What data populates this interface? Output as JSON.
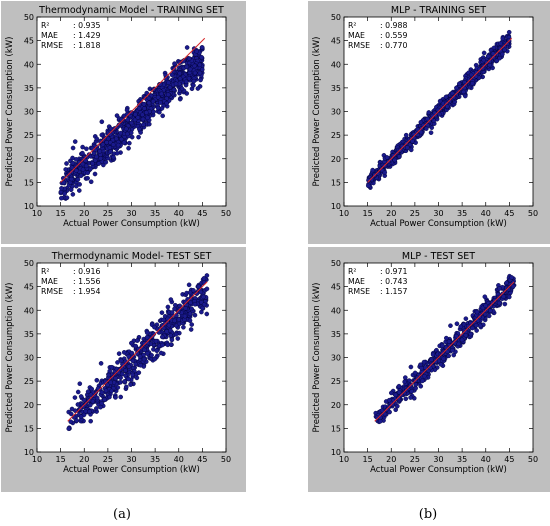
{
  "colors": {
    "panel_bg": "#bfbfbf",
    "plot_bg": "#ffffff",
    "point": "#1a1a8c",
    "point_edge": "#000033",
    "fit_line": "#d62728"
  },
  "captions": {
    "left": "(a)",
    "right": "(b)"
  },
  "chart_data": [
    {
      "type": "scatter",
      "title": "Thermodynamic Model - TRAINING SET",
      "xlabel": "Actual Power Consumption (kW)",
      "ylabel": "Predicted Power Consumption (kW)",
      "xlim": [
        10,
        50
      ],
      "ylim": [
        10,
        50
      ],
      "xticks": [
        10,
        15,
        20,
        25,
        30,
        35,
        40,
        45,
        50
      ],
      "yticks": [
        10,
        15,
        20,
        25,
        30,
        35,
        40,
        45,
        50
      ],
      "grid": false,
      "line": {
        "x": [
          15,
          45.5
        ],
        "y": [
          15,
          45.5
        ]
      },
      "stats": [
        {
          "label": "R²",
          "value": "0.935"
        },
        {
          "label": "MAE",
          "value": "1.429"
        },
        {
          "label": "RMSE",
          "value": "1.818"
        }
      ],
      "points": {
        "x_range": [
          15,
          45
        ],
        "offset": 0.6,
        "slope": 0.9,
        "spread": 1.9,
        "n": 900,
        "seed": 11
      }
    },
    {
      "type": "scatter",
      "title": "MLP - TRAINING SET",
      "xlabel": "Actual Power Consumption (kW)",
      "ylabel": "Predicted Power Consumption (kW)",
      "xlim": [
        10,
        50
      ],
      "ylim": [
        10,
        50
      ],
      "xticks": [
        10,
        15,
        20,
        25,
        30,
        35,
        40,
        45,
        50
      ],
      "yticks": [
        10,
        15,
        20,
        25,
        30,
        35,
        40,
        45,
        50
      ],
      "grid": false,
      "line": {
        "x": [
          15,
          45.5
        ],
        "y": [
          15,
          45.5
        ]
      },
      "stats": [
        {
          "label": "R²",
          "value": "0.988"
        },
        {
          "label": "MAE",
          "value": "0.559"
        },
        {
          "label": "RMSE",
          "value": "0.770"
        }
      ],
      "points": {
        "x_range": [
          15,
          45
        ],
        "offset": 0,
        "slope": 1.0,
        "spread": 0.8,
        "n": 900,
        "seed": 23
      }
    },
    {
      "type": "scatter",
      "title": "Thermodynamic Model- TEST SET",
      "xlabel": "Actual Power Consumption (kW)",
      "ylabel": "Predicted Power Consumption (kW)",
      "xlim": [
        10,
        50
      ],
      "ylim": [
        10,
        50
      ],
      "xticks": [
        10,
        15,
        20,
        25,
        30,
        35,
        40,
        45,
        50
      ],
      "yticks": [
        10,
        15,
        20,
        25,
        30,
        35,
        40,
        45,
        50
      ],
      "grid": false,
      "line": {
        "x": [
          16.5,
          46
        ],
        "y": [
          16.5,
          46
        ]
      },
      "stats": [
        {
          "label": "R²",
          "value": "0.916"
        },
        {
          "label": "MAE",
          "value": "1.556"
        },
        {
          "label": "RMSE",
          "value": "1.954"
        }
      ],
      "points": {
        "x_range": [
          16.5,
          46
        ],
        "offset": 0.3,
        "slope": 0.95,
        "spread": 2.0,
        "n": 600,
        "seed": 37
      }
    },
    {
      "type": "scatter",
      "title": "MLP - TEST SET",
      "xlabel": "Actual Power Consumption (kW)",
      "ylabel": "Predicted Power Consumption (kW)",
      "xlim": [
        10,
        50
      ],
      "ylim": [
        10,
        50
      ],
      "xticks": [
        10,
        15,
        20,
        25,
        30,
        35,
        40,
        45,
        50
      ],
      "yticks": [
        10,
        15,
        20,
        25,
        30,
        35,
        40,
        45,
        50
      ],
      "grid": false,
      "line": {
        "x": [
          16.5,
          46
        ],
        "y": [
          16.5,
          46
        ]
      },
      "stats": [
        {
          "label": "R²",
          "value": "0.971"
        },
        {
          "label": "MAE",
          "value": "0.743"
        },
        {
          "label": "RMSE",
          "value": "1.157"
        }
      ],
      "points": {
        "x_range": [
          16.5,
          46
        ],
        "offset": 0,
        "slope": 1.0,
        "spread": 1.1,
        "n": 600,
        "seed": 51
      }
    }
  ]
}
